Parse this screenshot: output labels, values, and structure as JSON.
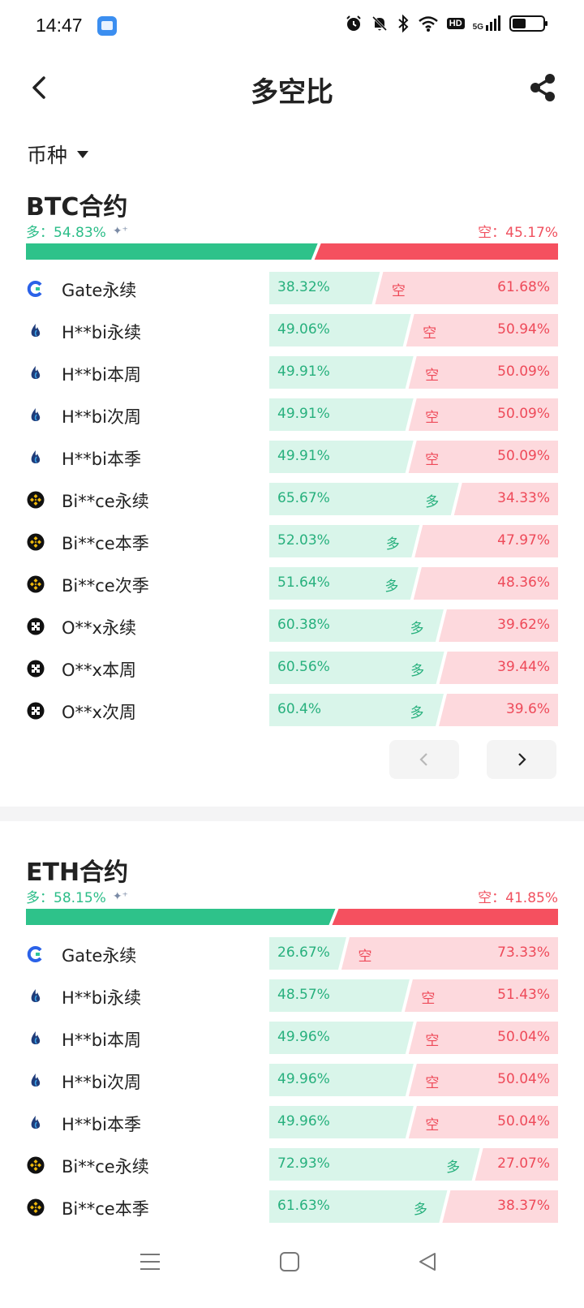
{
  "status": {
    "time": "14:47",
    "net": "5G",
    "hd": "HD"
  },
  "header": {
    "title": "多空比"
  },
  "filter": {
    "label": "币种"
  },
  "colors": {
    "long": "#2ec28a",
    "short": "#f5505f",
    "long_light": "#d9f5ea",
    "short_light": "#fdd9dd"
  },
  "sections": [
    {
      "title": "BTC合约",
      "long_summary": "多：54.83%",
      "short_summary": "空：45.17%",
      "long_ratio": 0.5483,
      "rows": [
        {
          "icon": "gate-icon",
          "name": "Gate永续",
          "long": "38.32%",
          "short": "61.68%",
          "long_ratio": 0.3832,
          "dominant": "空"
        },
        {
          "icon": "huobi-icon",
          "name": "H**bi永续",
          "long": "49.06%",
          "short": "50.94%",
          "long_ratio": 0.4906,
          "dominant": "空"
        },
        {
          "icon": "huobi-icon",
          "name": "H**bi本周",
          "long": "49.91%",
          "short": "50.09%",
          "long_ratio": 0.4991,
          "dominant": "空"
        },
        {
          "icon": "huobi-icon",
          "name": "H**bi次周",
          "long": "49.91%",
          "short": "50.09%",
          "long_ratio": 0.4991,
          "dominant": "空"
        },
        {
          "icon": "huobi-icon",
          "name": "H**bi本季",
          "long": "49.91%",
          "short": "50.09%",
          "long_ratio": 0.4991,
          "dominant": "空"
        },
        {
          "icon": "binance-icon",
          "name": "Bi**ce永续",
          "long": "65.67%",
          "short": "34.33%",
          "long_ratio": 0.6567,
          "dominant": "多"
        },
        {
          "icon": "binance-icon",
          "name": "Bi**ce本季",
          "long": "52.03%",
          "short": "47.97%",
          "long_ratio": 0.5203,
          "dominant": "多"
        },
        {
          "icon": "binance-icon",
          "name": "Bi**ce次季",
          "long": "51.64%",
          "short": "48.36%",
          "long_ratio": 0.5164,
          "dominant": "多"
        },
        {
          "icon": "okx-icon",
          "name": "O**x永续",
          "long": "60.38%",
          "short": "39.62%",
          "long_ratio": 0.6038,
          "dominant": "多"
        },
        {
          "icon": "okx-icon",
          "name": "O**x本周",
          "long": "60.56%",
          "short": "39.44%",
          "long_ratio": 0.6056,
          "dominant": "多"
        },
        {
          "icon": "okx-icon",
          "name": "O**x次周",
          "long": "60.4%",
          "short": "39.6%",
          "long_ratio": 0.604,
          "dominant": "多"
        }
      ]
    },
    {
      "title": "ETH合约",
      "long_summary": "多：58.15%",
      "short_summary": "空：41.85%",
      "long_ratio": 0.5815,
      "rows": [
        {
          "icon": "gate-icon",
          "name": "Gate永续",
          "long": "26.67%",
          "short": "73.33%",
          "long_ratio": 0.2667,
          "dominant": "空"
        },
        {
          "icon": "huobi-icon",
          "name": "H**bi永续",
          "long": "48.57%",
          "short": "51.43%",
          "long_ratio": 0.4857,
          "dominant": "空"
        },
        {
          "icon": "huobi-icon",
          "name": "H**bi本周",
          "long": "49.96%",
          "short": "50.04%",
          "long_ratio": 0.4996,
          "dominant": "空"
        },
        {
          "icon": "huobi-icon",
          "name": "H**bi次周",
          "long": "49.96%",
          "short": "50.04%",
          "long_ratio": 0.4996,
          "dominant": "空"
        },
        {
          "icon": "huobi-icon",
          "name": "H**bi本季",
          "long": "49.96%",
          "short": "50.04%",
          "long_ratio": 0.4996,
          "dominant": "空"
        },
        {
          "icon": "binance-icon",
          "name": "Bi**ce永续",
          "long": "72.93%",
          "short": "27.07%",
          "long_ratio": 0.7293,
          "dominant": "多"
        },
        {
          "icon": "binance-icon",
          "name": "Bi**ce本季",
          "long": "61.63%",
          "short": "38.37%",
          "long_ratio": 0.6163,
          "dominant": "多"
        }
      ]
    }
  ],
  "pager": {
    "prev_icon": "chevron-left-icon",
    "next_icon": "chevron-right-icon"
  },
  "system_nav": [
    "menu-icon",
    "home-square-icon",
    "back-triangle-icon"
  ]
}
